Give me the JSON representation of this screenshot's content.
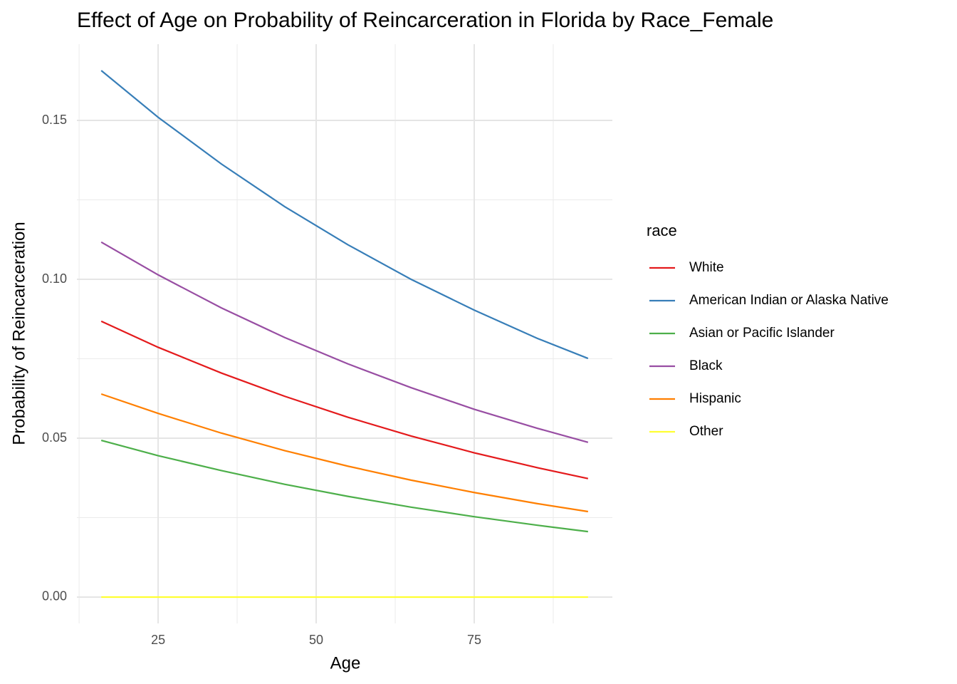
{
  "chart_data": {
    "type": "line",
    "title": "Effect of Age on Probability of Reincarceration in Florida by Race_Female",
    "x_label": "Age",
    "y_label": "Probability of Reincarceration",
    "legend_title": "race",
    "legend_position": "right",
    "grid": true,
    "x": [
      16,
      25,
      35,
      45,
      55,
      65,
      75,
      85,
      93
    ],
    "series": [
      {
        "name": "White",
        "color": "#e41a1c",
        "values": [
          0.0868,
          0.0786,
          0.0705,
          0.0632,
          0.0566,
          0.0507,
          0.0454,
          0.0407,
          0.0373
        ]
      },
      {
        "name": "American Indian or Alaska Native",
        "color": "#377eb8",
        "values": [
          0.1657,
          0.151,
          0.1363,
          0.1229,
          0.1109,
          0.1,
          0.0903,
          0.0814,
          0.0751
        ]
      },
      {
        "name": "Asian or Pacific Islander",
        "color": "#4daf4a",
        "values": [
          0.0493,
          0.0445,
          0.0398,
          0.0355,
          0.0317,
          0.0283,
          0.0253,
          0.0226,
          0.0206
        ]
      },
      {
        "name": "Black",
        "color": "#984ea3",
        "values": [
          0.1117,
          0.1014,
          0.091,
          0.0817,
          0.0734,
          0.0659,
          0.0591,
          0.0531,
          0.0487
        ]
      },
      {
        "name": "Hispanic",
        "color": "#ff7f00",
        "values": [
          0.0639,
          0.0578,
          0.0516,
          0.0461,
          0.0412,
          0.0368,
          0.0329,
          0.0294,
          0.0269
        ]
      },
      {
        "name": "Other",
        "color": "#ffff33",
        "values": [
          0,
          0,
          0,
          0,
          0,
          0,
          0,
          0,
          0
        ]
      }
    ],
    "xlim": [
      12.15,
      96.85
    ],
    "xticks": [
      25,
      50,
      75
    ],
    "x_minor_grid": [
      12.5,
      37.5,
      62.5,
      87.5
    ],
    "ylim": [
      -0.0083,
      0.174
    ],
    "yticks": [
      {
        "value": 0,
        "label": "0.00"
      },
      {
        "value": 0.05,
        "label": "0.05"
      },
      {
        "value": 0.1,
        "label": "0.10"
      },
      {
        "value": 0.15,
        "label": "0.15"
      }
    ],
    "y_minor_grid": [
      0.025,
      0.075,
      0.125
    ]
  }
}
